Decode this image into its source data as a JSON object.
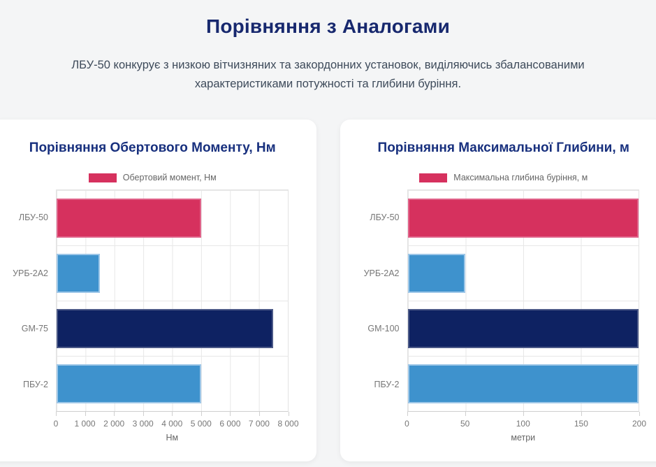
{
  "page": {
    "title": "Порівняння з Аналогами",
    "subtitle": "ЛБУ-50 конкурує з низкою вітчизняних та закордонних установок, виділяючись збалансованими характеристиками потужності та глибини буріння."
  },
  "colors": {
    "page_background": "#f4f5f6",
    "card_background": "#ffffff",
    "title_navy": "#17286e",
    "chart_title_navy": "#18307e",
    "subtitle_text": "#3d4a5a",
    "axis_text": "#777777",
    "grid_line": "#e7e7e7",
    "accent_pink": "#d6315e",
    "accent_light_blue": "#3e92cd",
    "accent_dark_navy": "#0e2262"
  },
  "chart_data": [
    {
      "type": "bar",
      "orientation": "horizontal",
      "title": "Порівняння Обертового Моменту, Нм",
      "legend": "Обертовий момент, Нм",
      "legend_color": "#d6315e",
      "legend_position": "top",
      "grid": true,
      "categories": [
        "ЛБУ-50",
        "УРБ-2А2",
        "GM-75",
        "ПБУ-2"
      ],
      "values": [
        5000,
        1500,
        7500,
        5000
      ],
      "bar_colors": [
        "#d6315e",
        "#3e92cd",
        "#0e2262",
        "#3e92cd"
      ],
      "bar_border_colors": [
        "#e0638a",
        "#9ec7e8",
        "#4c5a88",
        "#9ec7e8"
      ],
      "xlabel": "Нм",
      "xlim": [
        0,
        8000
      ],
      "xticks": [
        0,
        1000,
        2000,
        3000,
        4000,
        5000,
        6000,
        7000,
        8000
      ],
      "xtick_labels": [
        "0",
        "1 000",
        "2 000",
        "3 000",
        "4 000",
        "5 000",
        "6 000",
        "7 000",
        "8 000"
      ]
    },
    {
      "type": "bar",
      "orientation": "horizontal",
      "title": "Порівняння Максимальної Глибини, м",
      "legend": "Максимальна глибина буріння, м",
      "legend_color": "#d6315e",
      "legend_position": "top",
      "grid": true,
      "categories": [
        "ЛБУ-50",
        "УРБ-2А2",
        "GM-100",
        "ПБУ-2"
      ],
      "values": [
        200,
        50,
        200,
        200
      ],
      "bar_colors": [
        "#d6315e",
        "#3e92cd",
        "#0e2262",
        "#3e92cd"
      ],
      "bar_border_colors": [
        "#e0638a",
        "#9ec7e8",
        "#4c5a88",
        "#9ec7e8"
      ],
      "xlabel": "метри",
      "xlim": [
        0,
        200
      ],
      "xticks": [
        0,
        50,
        100,
        150,
        200
      ],
      "xtick_labels": [
        "0",
        "50",
        "100",
        "150",
        "200"
      ]
    }
  ]
}
